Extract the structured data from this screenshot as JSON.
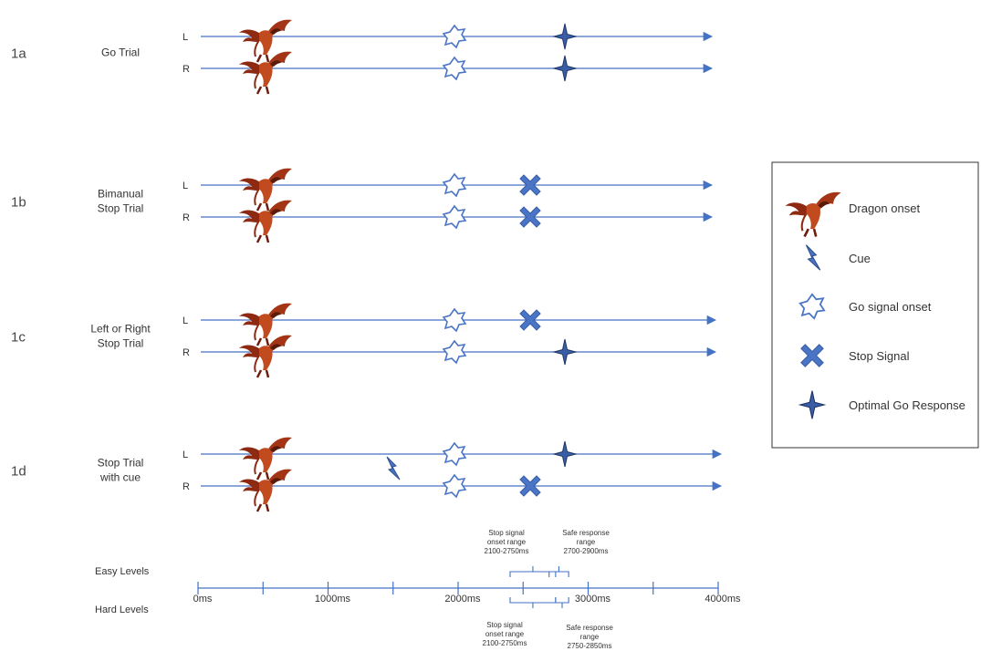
{
  "rows": [
    {
      "id": "1a",
      "title_lines": [
        "Go Trial"
      ],
      "lines": [
        {
          "side": "L",
          "events": [
            "go",
            "resp"
          ]
        },
        {
          "side": "R",
          "events": [
            "go",
            "resp"
          ]
        }
      ]
    },
    {
      "id": "1b",
      "title_lines": [
        "Bimanual",
        "Stop Trial"
      ],
      "lines": [
        {
          "side": "L",
          "events": [
            "go",
            "stop"
          ]
        },
        {
          "side": "R",
          "events": [
            "go",
            "stop"
          ]
        }
      ]
    },
    {
      "id": "1c",
      "title_lines": [
        "Left or Right",
        "Stop Trial"
      ],
      "lines": [
        {
          "side": "L",
          "events": [
            "go",
            "stop"
          ]
        },
        {
          "side": "R",
          "events": [
            "go",
            "resp"
          ]
        }
      ]
    },
    {
      "id": "1d",
      "title_lines": [
        "Stop Trial",
        "with cue"
      ],
      "lines": [
        {
          "side": "L",
          "events": [
            "go",
            "resp"
          ]
        },
        {
          "side": "R",
          "events": [
            "go",
            "stop"
          ]
        }
      ]
    }
  ],
  "legend": [
    {
      "icon": "dragon-icon",
      "label": "Dragon onset"
    },
    {
      "icon": "lightning-cue-icon",
      "label": "Cue"
    },
    {
      "icon": "star-outline-icon",
      "label": "Go signal onset"
    },
    {
      "icon": "x-cross-icon",
      "label": "Stop Signal"
    },
    {
      "icon": "four-point-star-icon",
      "label": "Optimal Go Response"
    }
  ],
  "timeline": {
    "tick_labels": [
      "0ms",
      "1000ms",
      "2000ms",
      "3000ms",
      "4000ms"
    ],
    "easy_label": "Easy Levels",
    "hard_label": "Hard Levels",
    "easy_stop_text": [
      "Stop signal",
      "onset range",
      "2100-2750ms"
    ],
    "easy_safe_text": [
      "Safe response",
      "range",
      "2700-2900ms"
    ],
    "hard_stop_text": [
      "Stop signal",
      "onset range",
      "2100-2750ms"
    ],
    "hard_safe_text": [
      "Safe response",
      "range",
      "2750-2850ms"
    ]
  },
  "colors": {
    "line": "#4472c4",
    "shape": "#4a74c6",
    "dark": "#2b3f66",
    "dragon": "#8e2a12"
  }
}
